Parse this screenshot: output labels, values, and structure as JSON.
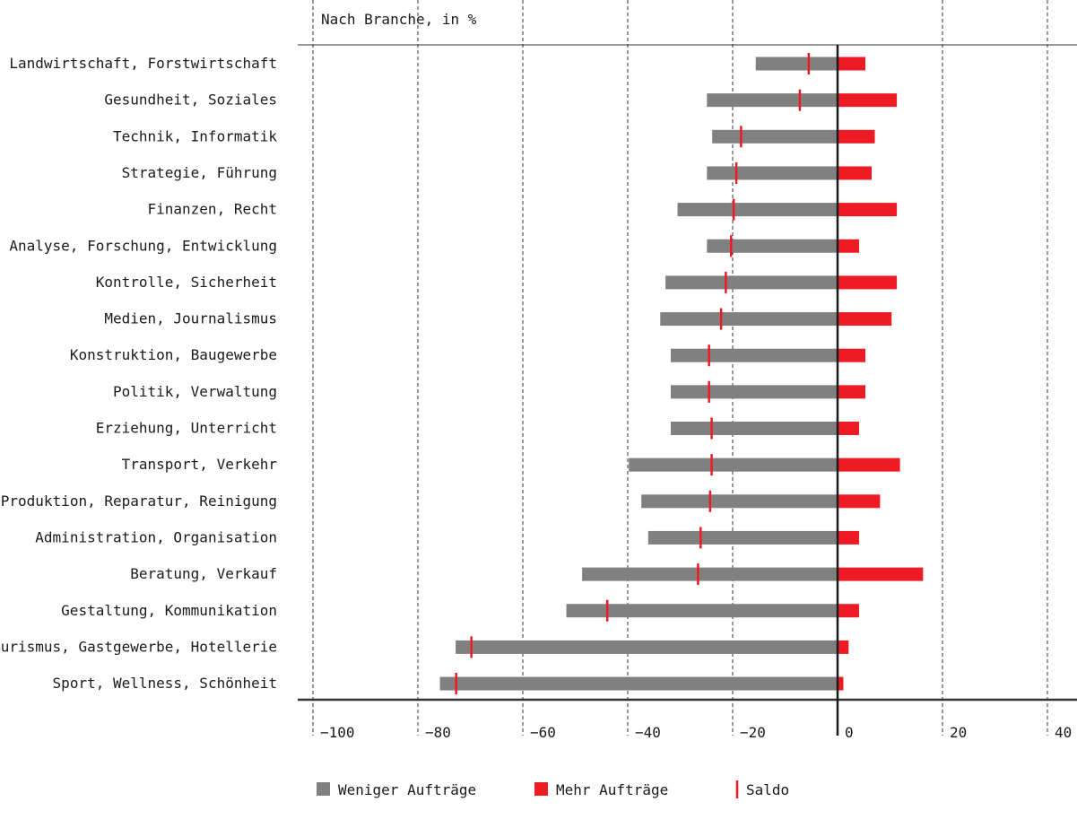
{
  "chart_data": {
    "type": "bar",
    "orientation": "horizontal",
    "title": "Nach Branche, in %",
    "xlabel": "",
    "ylabel": "",
    "xlim": [
      -100,
      40
    ],
    "xticks": [
      -100,
      -80,
      -60,
      -40,
      -20,
      0,
      20,
      40
    ],
    "xtick_labels": [
      "−100",
      "−80",
      "−60",
      "−40",
      "−20",
      "0",
      "20",
      "40"
    ],
    "grid": "vertical dashed",
    "legend_position": "bottom",
    "categories": [
      "Landwirtschaft, Forstwirtschaft",
      "Gesundheit, Soziales",
      "Technik, Informatik",
      "Strategie, Führung",
      "Finanzen, Recht",
      "Analyse, Forschung, Entwicklung",
      "Kontrolle, Sicherheit",
      "Medien, Journalismus",
      "Konstruktion, Baugewerbe",
      "Politik, Verwaltung",
      "Erziehung, Unterricht",
      "Transport, Verkehr",
      "Produktion, Reparatur, Reinigung",
      "Administration, Organisation",
      "Beratung, Verkauf",
      "Gestaltung, Kommunikation",
      "Tourismus, Gastgewerbe, Hotellerie",
      "Sport, Wellness, Schönheit"
    ],
    "series": [
      {
        "name": "Weniger Aufträge",
        "color": "#808080",
        "values": [
          -15.6,
          -24.9,
          -23.9,
          -24.9,
          -30.5,
          -24.9,
          -32.8,
          -33.8,
          -31.8,
          -31.8,
          -31.8,
          -39.8,
          -37.4,
          -36.1,
          -48.7,
          -51.7,
          -72.8,
          -75.8
        ]
      },
      {
        "name": "Mehr Aufträge",
        "color": "#ed1c24",
        "values": [
          5.3,
          11.3,
          7.1,
          6.5,
          11.3,
          4.1,
          11.3,
          10.3,
          5.3,
          5.3,
          4.1,
          11.9,
          8.1,
          4.1,
          16.3,
          4.1,
          2.1,
          1.1
        ]
      },
      {
        "name": "Saldo",
        "color": "#ed1c24",
        "values": [
          -5.5,
          -7.2,
          -18.4,
          -19.3,
          -19.8,
          -20.3,
          -21.3,
          -22.2,
          -24.5,
          -24.5,
          -24.0,
          -24.0,
          -24.3,
          -26.1,
          -26.6,
          -43.9,
          -69.8,
          -72.7
        ]
      }
    ]
  }
}
